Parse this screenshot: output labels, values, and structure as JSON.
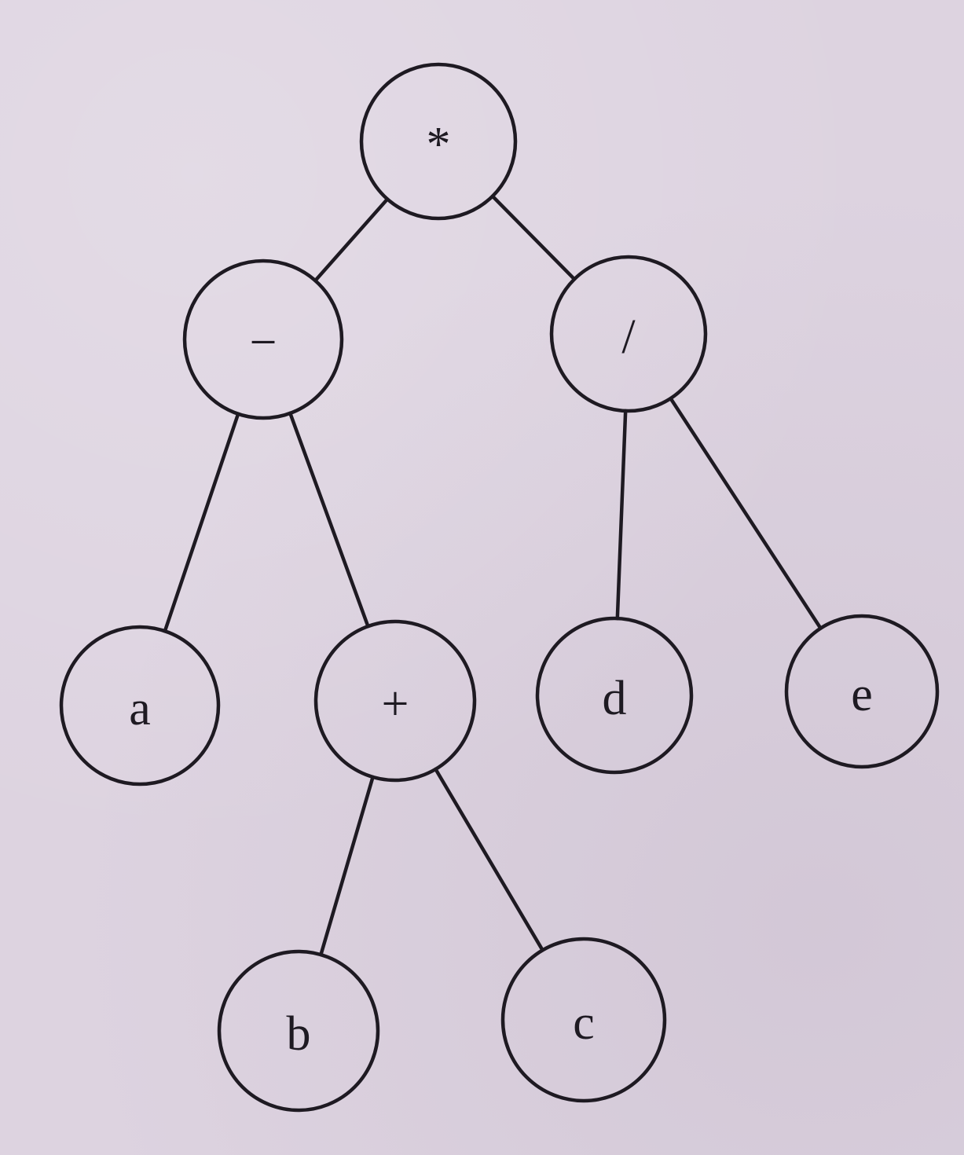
{
  "nodes": [
    {
      "id": "mul",
      "label": "*"
    },
    {
      "id": "minus",
      "label": "−"
    },
    {
      "id": "div",
      "label": "/"
    },
    {
      "id": "a",
      "label": "a"
    },
    {
      "id": "plus",
      "label": "+"
    },
    {
      "id": "d",
      "label": "d"
    },
    {
      "id": "e",
      "label": "e"
    },
    {
      "id": "b",
      "label": "b"
    },
    {
      "id": "c",
      "label": "c"
    }
  ],
  "edges": [
    {
      "from": "mul",
      "to": "minus"
    },
    {
      "from": "mul",
      "to": "div"
    },
    {
      "from": "minus",
      "to": "a"
    },
    {
      "from": "minus",
      "to": "plus"
    },
    {
      "from": "div",
      "to": "d"
    },
    {
      "from": "div",
      "to": "e"
    },
    {
      "from": "plus",
      "to": "b"
    },
    {
      "from": "plus",
      "to": "c"
    }
  ],
  "colors": {
    "background": "#ddd3e0",
    "ink": "#1e1a22"
  }
}
